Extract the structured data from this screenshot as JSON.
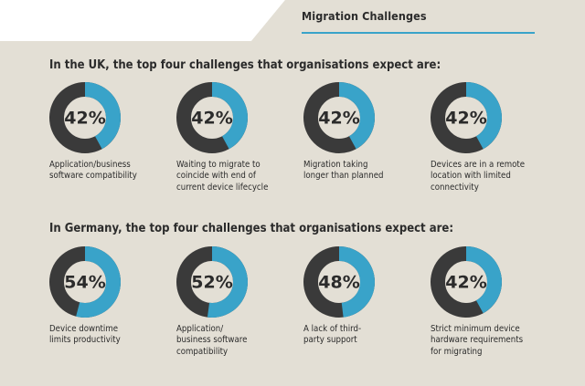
{
  "header": {
    "title": "Migration Challenges"
  },
  "colors": {
    "accent": "#39a3c9",
    "ring": "#3a3a3a",
    "background": "#e3dfd5"
  },
  "uk": {
    "heading": "In the UK, the top four challenges that organisations expect are:",
    "items": [
      {
        "value": 42,
        "label": "42%",
        "caption": "Application/business\nsoftware compatibility"
      },
      {
        "value": 42,
        "label": "42%",
        "caption": "Waiting to migrate to\ncoincide with end of\ncurrent device lifecycle"
      },
      {
        "value": 42,
        "label": "42%",
        "caption": "Migration taking\nlonger than planned"
      },
      {
        "value": 42,
        "label": "42%",
        "caption": "Devices are in a remote\nlocation with limited\nconnectivity"
      }
    ]
  },
  "germany": {
    "heading": "In Germany, the top four challenges that organisations expect are:",
    "items": [
      {
        "value": 54,
        "label": "54%",
        "caption": "Device downtime\nlimits productivity"
      },
      {
        "value": 52,
        "label": "52%",
        "caption": "Application/\nbusiness software\ncompatibility"
      },
      {
        "value": 48,
        "label": "48%",
        "caption": "A lack of third-\nparty support"
      },
      {
        "value": 42,
        "label": "42%",
        "caption": "Strict minimum device\nhardware requirements\nfor migrating"
      }
    ]
  },
  "chart_data": [
    {
      "type": "pie",
      "title": "In the UK, the top four challenges that organisations expect are:",
      "categories": [
        "Application/business software compatibility",
        "Waiting to migrate to coincide with end of current device lifecycle",
        "Migration taking longer than planned",
        "Devices are in a remote location with limited connectivity"
      ],
      "values": [
        42,
        42,
        42,
        42
      ]
    },
    {
      "type": "pie",
      "title": "In Germany, the top four challenges that organisations expect are:",
      "categories": [
        "Device downtime limits productivity",
        "Application/ business software compatibility",
        "A lack of third-party support",
        "Strict minimum device hardware requirements for migrating"
      ],
      "values": [
        54,
        52,
        48,
        42
      ]
    }
  ]
}
